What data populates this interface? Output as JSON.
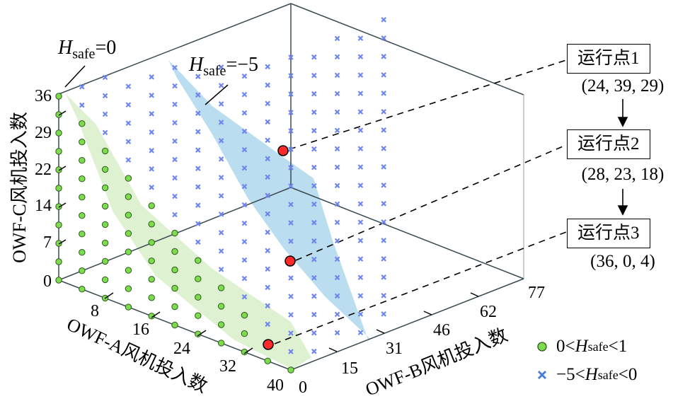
{
  "chart_data": {
    "type": "scatter3d",
    "title": "",
    "axes": {
      "x": {
        "label": "OWF-A风机投入数",
        "ticks": [
          8,
          16,
          24,
          32,
          40
        ],
        "range": [
          0,
          40
        ]
      },
      "y": {
        "label": "OWF-B风机投入数",
        "ticks": [
          0,
          15,
          31,
          46,
          62,
          77
        ],
        "range": [
          0,
          77
        ]
      },
      "z": {
        "label": "OWF-C风机投入数",
        "ticks": [
          0,
          7,
          14,
          22,
          29,
          36
        ],
        "range": [
          0,
          36
        ]
      }
    },
    "series": [
      {
        "name": "0<Hsafe<1",
        "marker": "circle",
        "color": "#7ddb4e"
      },
      {
        "name": "-5<Hsafe<0",
        "marker": "x",
        "color": "#6f86f0"
      }
    ],
    "surfaces": [
      {
        "name": "Hsafe=0",
        "color": "#d8efc9"
      },
      {
        "name": "Hsafe=-5",
        "color": "#a9d4ec"
      }
    ],
    "operating_points": [
      {
        "label": "运行点1",
        "coords": [
          24,
          39,
          29
        ]
      },
      {
        "label": "运行点2",
        "coords": [
          28,
          23,
          18
        ]
      },
      {
        "label": "运行点3",
        "coords": [
          36,
          0,
          4
        ]
      }
    ],
    "annotations": [
      "Hsafe=0",
      "Hsafe=-5"
    ],
    "grid": false,
    "legend_position": "lower right"
  },
  "labels": {
    "z_axis": "OWF-C风机投入数",
    "x_axis": "OWF-A风机投入数",
    "y_axis": "OWF-B风机投入数",
    "annot_h0_var": "H",
    "annot_h0_sub": "safe",
    "annot_h0_val": "=0",
    "annot_h5_var": "H",
    "annot_h5_sub": "safe",
    "annot_h5_val": "=−5"
  },
  "op_points": [
    {
      "label": "运行点1",
      "coord_text": "(24, 39, 29)"
    },
    {
      "label": "运行点2",
      "coord_text": "(28, 23, 18)"
    },
    {
      "label": "运行点3",
      "coord_text": "(36, 0, 4)"
    }
  ],
  "legend": [
    {
      "pre": "0<",
      "var": "H",
      "sub": "safe",
      "post": "<1"
    },
    {
      "pre": "−5<",
      "var": "H",
      "sub": "safe",
      "post": "<0"
    }
  ],
  "ticks": {
    "z": [
      "36",
      "29",
      "22",
      "14",
      "7",
      "0"
    ],
    "x": [
      "8",
      "16",
      "24",
      "32",
      "40"
    ],
    "y": [
      "0",
      "15",
      "31",
      "46",
      "62",
      "77"
    ]
  },
  "colors": {
    "green": "#7ddb4e",
    "blue": "#6f86f0",
    "red": "#ff2a2a",
    "green_surface": "#d8efc9",
    "blue_surface": "#a9d4ec",
    "axis": "#3a4a52"
  }
}
